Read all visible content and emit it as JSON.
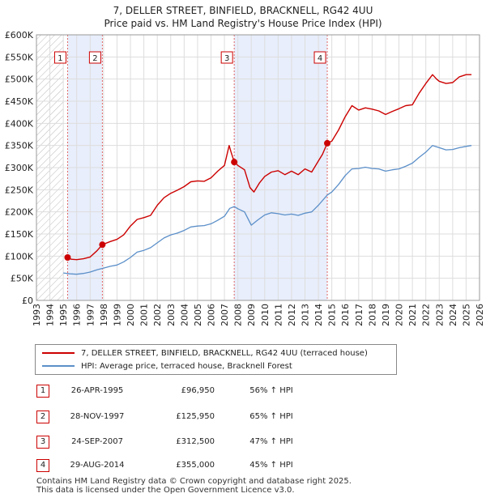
{
  "chart_data": {
    "type": "line",
    "title": "7, DELLER STREET, BINFIELD, BRACKNELL, RG42 4UU",
    "subtitle": "Price paid vs. HM Land Registry's House Price Index (HPI)",
    "xlim": [
      1993,
      2026
    ],
    "ylim": [
      0,
      600000
    ],
    "x_ticks": [
      "1993",
      "1994",
      "1995",
      "1996",
      "1997",
      "1998",
      "1999",
      "2000",
      "2001",
      "2002",
      "2003",
      "2004",
      "2005",
      "2006",
      "2007",
      "2008",
      "2009",
      "2010",
      "2011",
      "2012",
      "2013",
      "2014",
      "2015",
      "2016",
      "2017",
      "2018",
      "2019",
      "2020",
      "2021",
      "2022",
      "2023",
      "2024",
      "2025",
      "2026"
    ],
    "y_ticks": [
      {
        "value": 0,
        "label": "£0"
      },
      {
        "value": 50000,
        "label": "£50K"
      },
      {
        "value": 100000,
        "label": "£100K"
      },
      {
        "value": 150000,
        "label": "£150K"
      },
      {
        "value": 200000,
        "label": "£200K"
      },
      {
        "value": 250000,
        "label": "£250K"
      },
      {
        "value": 300000,
        "label": "£300K"
      },
      {
        "value": 350000,
        "label": "£350K"
      },
      {
        "value": 400000,
        "label": "£400K"
      },
      {
        "value": 450000,
        "label": "£450K"
      },
      {
        "value": 500000,
        "label": "£500K"
      },
      {
        "value": 550000,
        "label": "£550K"
      },
      {
        "value": 600000,
        "label": "£600K"
      }
    ],
    "hatch_end": 1995.0,
    "shade_regions": [
      [
        1995.32,
        1997.91
      ],
      [
        2007.73,
        2014.66
      ]
    ],
    "series": [
      {
        "name": "7, DELLER STREET, BINFIELD, BRACKNELL, RG42 4UU (terraced house)",
        "color": "#cc0000",
        "points": [
          [
            1995.32,
            96950
          ],
          [
            1995.6,
            93000
          ],
          [
            1996.0,
            92000
          ],
          [
            1996.5,
            94000
          ],
          [
            1997.0,
            98000
          ],
          [
            1997.5,
            112000
          ],
          [
            1997.91,
            125950
          ],
          [
            1998.5,
            133000
          ],
          [
            1999.0,
            138000
          ],
          [
            1999.5,
            148000
          ],
          [
            2000.0,
            168000
          ],
          [
            2000.5,
            183000
          ],
          [
            2001.0,
            187000
          ],
          [
            2001.5,
            192000
          ],
          [
            2002.0,
            215000
          ],
          [
            2002.5,
            232000
          ],
          [
            2003.0,
            242000
          ],
          [
            2003.5,
            249000
          ],
          [
            2004.0,
            257000
          ],
          [
            2004.5,
            268000
          ],
          [
            2005.0,
            270000
          ],
          [
            2005.5,
            269000
          ],
          [
            2006.0,
            277000
          ],
          [
            2006.5,
            292000
          ],
          [
            2007.0,
            305000
          ],
          [
            2007.35,
            350000
          ],
          [
            2007.5,
            335000
          ],
          [
            2007.73,
            312500
          ],
          [
            2008.0,
            305000
          ],
          [
            2008.5,
            295000
          ],
          [
            2008.9,
            255000
          ],
          [
            2009.2,
            245000
          ],
          [
            2009.6,
            265000
          ],
          [
            2010.0,
            280000
          ],
          [
            2010.5,
            290000
          ],
          [
            2011.0,
            293000
          ],
          [
            2011.5,
            284000
          ],
          [
            2012.0,
            292000
          ],
          [
            2012.5,
            284000
          ],
          [
            2013.0,
            297000
          ],
          [
            2013.5,
            290000
          ],
          [
            2014.0,
            315000
          ],
          [
            2014.3,
            330000
          ],
          [
            2014.66,
            355000
          ],
          [
            2015.0,
            360000
          ],
          [
            2015.5,
            385000
          ],
          [
            2016.0,
            415000
          ],
          [
            2016.5,
            440000
          ],
          [
            2017.0,
            430000
          ],
          [
            2017.5,
            435000
          ],
          [
            2018.0,
            432000
          ],
          [
            2018.5,
            428000
          ],
          [
            2019.0,
            420000
          ],
          [
            2019.5,
            427000
          ],
          [
            2020.0,
            433000
          ],
          [
            2020.5,
            440000
          ],
          [
            2021.0,
            442000
          ],
          [
            2021.5,
            468000
          ],
          [
            2022.0,
            490000
          ],
          [
            2022.5,
            510000
          ],
          [
            2022.8,
            500000
          ],
          [
            2023.0,
            495000
          ],
          [
            2023.5,
            490000
          ],
          [
            2024.0,
            492000
          ],
          [
            2024.5,
            505000
          ],
          [
            2025.0,
            510000
          ],
          [
            2025.4,
            510000
          ]
        ]
      },
      {
        "name": "HPI: Average price, terraced house, Bracknell Forest",
        "color": "#5b8fc9",
        "points": [
          [
            1995.0,
            62000
          ],
          [
            1995.5,
            60000
          ],
          [
            1996.0,
            59000
          ],
          [
            1996.5,
            61000
          ],
          [
            1997.0,
            64000
          ],
          [
            1997.5,
            69000
          ],
          [
            1998.0,
            73000
          ],
          [
            1998.5,
            77000
          ],
          [
            1999.0,
            80000
          ],
          [
            1999.5,
            87000
          ],
          [
            2000.0,
            97000
          ],
          [
            2000.5,
            109000
          ],
          [
            2001.0,
            113000
          ],
          [
            2001.5,
            119000
          ],
          [
            2002.0,
            130000
          ],
          [
            2002.5,
            141000
          ],
          [
            2003.0,
            148000
          ],
          [
            2003.5,
            152000
          ],
          [
            2004.0,
            158000
          ],
          [
            2004.5,
            166000
          ],
          [
            2005.0,
            168000
          ],
          [
            2005.5,
            169000
          ],
          [
            2006.0,
            173000
          ],
          [
            2006.5,
            181000
          ],
          [
            2007.0,
            190000
          ],
          [
            2007.4,
            208000
          ],
          [
            2007.73,
            212000
          ],
          [
            2008.0,
            207000
          ],
          [
            2008.5,
            200000
          ],
          [
            2009.0,
            170000
          ],
          [
            2009.5,
            182000
          ],
          [
            2010.0,
            193000
          ],
          [
            2010.5,
            198000
          ],
          [
            2011.0,
            196000
          ],
          [
            2011.5,
            193000
          ],
          [
            2012.0,
            195000
          ],
          [
            2012.5,
            192000
          ],
          [
            2013.0,
            197000
          ],
          [
            2013.5,
            200000
          ],
          [
            2014.0,
            215000
          ],
          [
            2014.66,
            238000
          ],
          [
            2015.0,
            245000
          ],
          [
            2015.5,
            262000
          ],
          [
            2016.0,
            282000
          ],
          [
            2016.5,
            297000
          ],
          [
            2017.0,
            298000
          ],
          [
            2017.5,
            301000
          ],
          [
            2018.0,
            298000
          ],
          [
            2018.5,
            297000
          ],
          [
            2019.0,
            292000
          ],
          [
            2019.5,
            295000
          ],
          [
            2020.0,
            297000
          ],
          [
            2020.5,
            303000
          ],
          [
            2021.0,
            310000
          ],
          [
            2021.5,
            323000
          ],
          [
            2022.0,
            335000
          ],
          [
            2022.5,
            350000
          ],
          [
            2023.0,
            345000
          ],
          [
            2023.5,
            340000
          ],
          [
            2024.0,
            341000
          ],
          [
            2024.5,
            345000
          ],
          [
            2025.0,
            348000
          ],
          [
            2025.4,
            350000
          ]
        ]
      }
    ],
    "sales": [
      {
        "label": "1",
        "x": 1995.32,
        "price": 96950
      },
      {
        "label": "2",
        "x": 1997.91,
        "price": 125950
      },
      {
        "label": "3",
        "x": 2007.73,
        "price": 312500
      },
      {
        "label": "4",
        "x": 2014.66,
        "price": 355000
      }
    ]
  },
  "legend": {
    "property": "7, DELLER STREET, BINFIELD, BRACKNELL, RG42 4UU (terraced house)",
    "hpi": "HPI: Average price, terraced house, Bracknell Forest"
  },
  "transactions": [
    {
      "num": "1",
      "date": "26-APR-1995",
      "price": "£96,950",
      "hpi": "56% ↑ HPI"
    },
    {
      "num": "2",
      "date": "28-NOV-1997",
      "price": "£125,950",
      "hpi": "65% ↑ HPI"
    },
    {
      "num": "3",
      "date": "24-SEP-2007",
      "price": "£312,500",
      "hpi": "47% ↑ HPI"
    },
    {
      "num": "4",
      "date": "29-AUG-2014",
      "price": "£355,000",
      "hpi": "45% ↑ HPI"
    }
  ],
  "footer": {
    "line1": "Contains HM Land Registry data © Crown copyright and database right 2025.",
    "line2": "This data is licensed under the Open Government Licence v3.0."
  },
  "colors": {
    "property": "#cc0000",
    "hpi": "#5b8fc9",
    "shade": "#e8eefb",
    "marker_border": "#cc0000"
  }
}
